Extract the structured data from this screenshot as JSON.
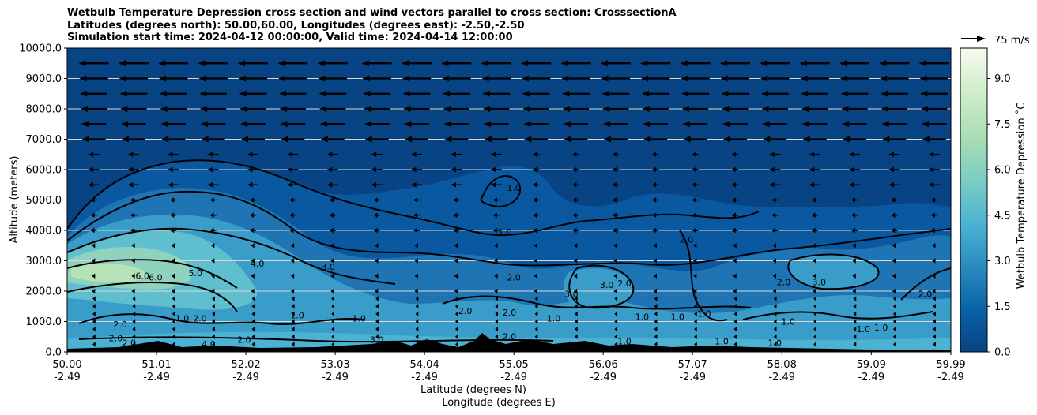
{
  "title": {
    "line1": "Wetbulb Temperature Depression cross section and wind vectors parallel to cross section: CrosssectionA",
    "line2": "Latitudes (degrees north): 50.00,60.00, Longitudes (degrees east): -2.50,-2.50",
    "line3": "Simulation start time: 2024-04-12 00:00:00, Valid time: 2024-04-14 12:00:00"
  },
  "quiver_key": {
    "label": "75 m/s",
    "color": "#000000"
  },
  "colorbar": {
    "label": "Wetbulb Temperature Depression ˚C",
    "range": [
      0,
      10
    ],
    "ticks": [
      "0.0",
      "1.5",
      "3.0",
      "4.5",
      "6.0",
      "7.5",
      "9.0"
    ],
    "colormap": "GnBu_r",
    "stops": [
      "#084384",
      "#0a62a6",
      "#2b8bbe",
      "#4cb2d3",
      "#7accc4",
      "#a7ddb5",
      "#ccebc5",
      "#f7fcf0"
    ]
  },
  "chart_data": {
    "type": "heatmap",
    "xlabel": "Latitude (degrees N)",
    "xlabel2": "Longitude (degrees E)",
    "ylabel": "Altitude (meters)",
    "xlim": [
      50.0,
      59.99
    ],
    "ylim": [
      0,
      10000
    ],
    "x_ticks": [
      {
        "lat": "50.00",
        "lon": "-2.49",
        "value": 50.0
      },
      {
        "lat": "51.01",
        "lon": "-2.49",
        "value": 51.01
      },
      {
        "lat": "52.02",
        "lon": "-2.49",
        "value": 52.02
      },
      {
        "lat": "53.03",
        "lon": "-2.49",
        "value": 53.03
      },
      {
        "lat": "54.04",
        "lon": "-2.49",
        "value": 54.04
      },
      {
        "lat": "55.05",
        "lon": "-2.49",
        "value": 55.05
      },
      {
        "lat": "56.06",
        "lon": "-2.49",
        "value": 56.06
      },
      {
        "lat": "57.07",
        "lon": "-2.49",
        "value": 57.07
      },
      {
        "lat": "58.08",
        "lon": "-2.49",
        "value": 58.08
      },
      {
        "lat": "59.09",
        "lon": "-2.49",
        "value": 59.09
      },
      {
        "lat": "59.99",
        "lon": "-2.49",
        "value": 59.99
      }
    ],
    "y_ticks": [
      {
        "label": "0.0",
        "value": 0
      },
      {
        "label": "1000.0",
        "value": 1000
      },
      {
        "label": "2000.0",
        "value": 2000
      },
      {
        "label": "3000.0",
        "value": 3000
      },
      {
        "label": "4000.0",
        "value": 4000
      },
      {
        "label": "5000.0",
        "value": 5000
      },
      {
        "label": "6000.0",
        "value": 6000
      },
      {
        "label": "7000.0",
        "value": 7000
      },
      {
        "label": "8000.0",
        "value": 8000
      },
      {
        "label": "9000.0",
        "value": 9000
      },
      {
        "label": "10000.0",
        "value": 10000
      }
    ],
    "horizontal_gridlines": true,
    "contour_labels": [
      {
        "text": "6.0",
        "lat": 50.85,
        "alt": 2400
      },
      {
        "text": "6.0",
        "lat": 51.0,
        "alt": 2350
      },
      {
        "text": "5.0",
        "lat": 51.45,
        "alt": 2500
      },
      {
        "text": "4.0",
        "lat": 52.15,
        "alt": 2800
      },
      {
        "text": "3.0",
        "lat": 52.95,
        "alt": 2700
      },
      {
        "text": "1.0",
        "lat": 55.05,
        "alt": 5300
      },
      {
        "text": "1.0",
        "lat": 54.95,
        "alt": 3850
      },
      {
        "text": "2.0",
        "lat": 55.05,
        "alt": 2350
      },
      {
        "text": "2.0",
        "lat": 57.0,
        "alt": 3600
      },
      {
        "text": "3.0",
        "lat": 56.1,
        "alt": 2100
      },
      {
        "text": "2.0",
        "lat": 56.3,
        "alt": 2150
      },
      {
        "text": "3.0",
        "lat": 55.7,
        "alt": 1800
      },
      {
        "text": "2.0",
        "lat": 58.1,
        "alt": 2200
      },
      {
        "text": "3.0",
        "lat": 58.5,
        "alt": 2200
      },
      {
        "text": "2.0",
        "lat": 59.7,
        "alt": 1800
      },
      {
        "text": "2.0",
        "lat": 54.5,
        "alt": 1250
      },
      {
        "text": "2.0",
        "lat": 55.0,
        "alt": 1200
      },
      {
        "text": "2.0",
        "lat": 55.0,
        "alt": 400
      },
      {
        "text": "2.0",
        "lat": 52.0,
        "alt": 300
      },
      {
        "text": "1.0",
        "lat": 51.3,
        "alt": 1000
      },
      {
        "text": "2.0",
        "lat": 51.5,
        "alt": 1000
      },
      {
        "text": "1.0",
        "lat": 52.6,
        "alt": 1100
      },
      {
        "text": "1.0",
        "lat": 53.3,
        "alt": 1000
      },
      {
        "text": "1.0",
        "lat": 55.5,
        "alt": 1000
      },
      {
        "text": "1.0",
        "lat": 56.5,
        "alt": 1050
      },
      {
        "text": "1.0",
        "lat": 56.9,
        "alt": 1050
      },
      {
        "text": "1.0",
        "lat": 57.2,
        "alt": 1150
      },
      {
        "text": "1.0",
        "lat": 58.15,
        "alt": 900
      },
      {
        "text": "1.0",
        "lat": 59.0,
        "alt": 650
      },
      {
        "text": "1.0",
        "lat": 59.2,
        "alt": 700
      },
      {
        "text": "2.0",
        "lat": 50.6,
        "alt": 800
      },
      {
        "text": "3.0",
        "lat": 53.5,
        "alt": 300
      },
      {
        "text": "2.0",
        "lat": 50.7,
        "alt": 200
      },
      {
        "text": "4.0",
        "lat": 51.6,
        "alt": 150
      },
      {
        "text": "2.0",
        "lat": 50.55,
        "alt": 350
      },
      {
        "text": "1.0",
        "lat": 56.3,
        "alt": 250
      },
      {
        "text": "1.0",
        "lat": 57.4,
        "alt": 250
      },
      {
        "text": "1.0",
        "lat": 58.0,
        "alt": 200
      }
    ],
    "wind_vector_rows_alt": [
      250,
      500,
      750,
      1000,
      1250,
      1500,
      1750,
      2000,
      2500,
      3000,
      3500,
      4000,
      4500,
      5000,
      5500,
      6000,
      6500,
      7000,
      7500,
      8000,
      8500,
      9000,
      9500
    ],
    "wind_vector_cols_lat": [
      50.3,
      50.75,
      51.2,
      51.65,
      52.1,
      52.55,
      53.0,
      53.5,
      53.95,
      54.4,
      54.85,
      55.3,
      55.75,
      56.2,
      56.65,
      57.1,
      57.55,
      58.0,
      58.45,
      58.9,
      59.35,
      59.8
    ],
    "wind_direction": "southward (towards decreasing latitude)",
    "terrain_max_alt_m": 600
  }
}
